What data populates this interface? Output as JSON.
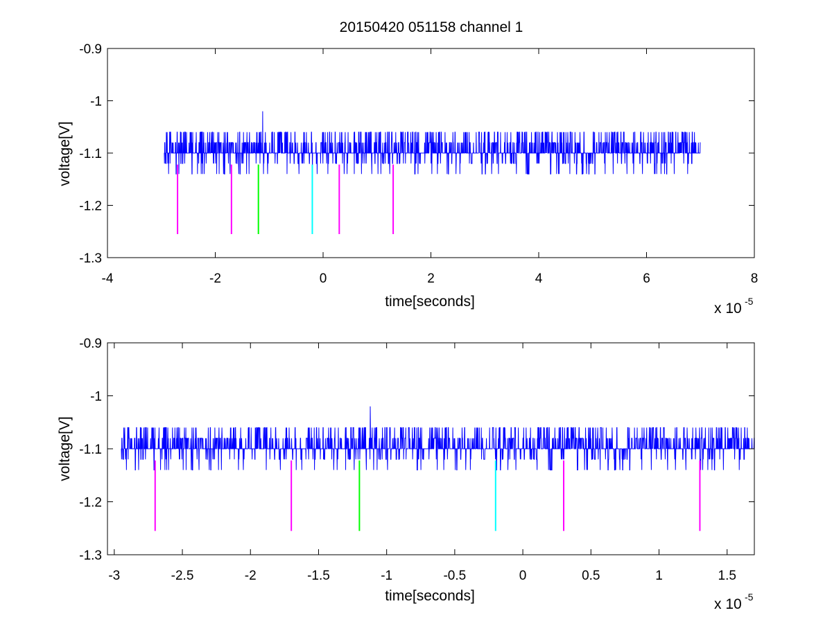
{
  "figure": {
    "title": "20150420 051158 channel 1"
  },
  "colors": {
    "signal": "#0000ff",
    "magenta": "#ff00ff",
    "green": "#00ff00",
    "cyan": "#00ffff",
    "axes": "#000000"
  },
  "chart_data": [
    {
      "type": "line",
      "title": "20150420 051158 channel 1",
      "xlabel": "time[seconds]",
      "ylabel": "voltage[V]",
      "x_multiplier_label": "x 10",
      "x_multiplier_exponent": "-5",
      "x_scale": 1e-05,
      "xlim": [
        -4e-05,
        8e-05
      ],
      "ylim": [
        -1.3,
        -0.9
      ],
      "x_tick_labels": [
        "-4",
        "-2",
        "0",
        "2",
        "4",
        "6",
        "8"
      ],
      "x_tick_values": [
        -4e-05,
        -2e-05,
        0,
        2e-05,
        4e-05,
        6e-05,
        8e-05
      ],
      "y_tick_labels": [
        "-1.3",
        "-1.2",
        "-1.1",
        "-1",
        "-0.9"
      ],
      "y_tick_values": [
        -1.3,
        -1.2,
        -1.1,
        -1.0,
        -0.9
      ],
      "grid": false,
      "series": [
        {
          "kind": "noisy-step-signal",
          "color": "#0000ff",
          "x_range": [
            -2.95e-05,
            7e-05
          ],
          "baseline": -1.1,
          "levels": [
            -1.14,
            -1.12,
            -1.1,
            -1.08,
            -1.06
          ],
          "spike": {
            "x": -1.12e-05,
            "y": -1.02
          }
        }
      ],
      "markers": [
        {
          "x": -2.7e-05,
          "y_range": [
            -1.255,
            -1.122
          ],
          "color": "#ff00ff"
        },
        {
          "x": -1.7e-05,
          "y_range": [
            -1.255,
            -1.122
          ],
          "color": "#ff00ff"
        },
        {
          "x": -1.2e-05,
          "y_range": [
            -1.255,
            -1.122
          ],
          "color": "#00ff00"
        },
        {
          "x": -2e-06,
          "y_range": [
            -1.255,
            -1.122
          ],
          "color": "#00ffff"
        },
        {
          "x": 3e-06,
          "y_range": [
            -1.255,
            -1.122
          ],
          "color": "#ff00ff"
        },
        {
          "x": 1.3e-05,
          "y_range": [
            -1.255,
            -1.122
          ],
          "color": "#ff00ff"
        }
      ]
    },
    {
      "type": "line",
      "xlabel": "time[seconds]",
      "ylabel": "voltage[V]",
      "x_multiplier_label": "x 10",
      "x_multiplier_exponent": "-5",
      "x_scale": 1e-05,
      "xlim": [
        -3.05e-05,
        1.7e-05
      ],
      "ylim": [
        -1.3,
        -0.9
      ],
      "x_tick_labels": [
        "-3",
        "-2.5",
        "-2",
        "-1.5",
        "-1",
        "-0.5",
        "0",
        "0.5",
        "1",
        "1.5"
      ],
      "x_tick_values": [
        -3e-05,
        -2.5e-05,
        -2e-05,
        -1.5e-05,
        -1e-05,
        -5e-06,
        0,
        5e-06,
        1e-05,
        1.5e-05
      ],
      "y_tick_labels": [
        "-1.3",
        "-1.2",
        "-1.1",
        "-1",
        "-0.9"
      ],
      "y_tick_values": [
        -1.3,
        -1.2,
        -1.1,
        -1.0,
        -0.9
      ],
      "grid": false,
      "series": [
        {
          "kind": "noisy-step-signal",
          "color": "#0000ff",
          "x_range": [
            -2.95e-05,
            1.7e-05
          ],
          "baseline": -1.1,
          "levels": [
            -1.14,
            -1.12,
            -1.1,
            -1.08,
            -1.06
          ],
          "spike": {
            "x": -1.12e-05,
            "y": -1.02
          }
        }
      ],
      "markers": [
        {
          "x": -2.7e-05,
          "y_range": [
            -1.255,
            -1.122
          ],
          "color": "#ff00ff"
        },
        {
          "x": -1.7e-05,
          "y_range": [
            -1.255,
            -1.122
          ],
          "color": "#ff00ff"
        },
        {
          "x": -1.2e-05,
          "y_range": [
            -1.255,
            -1.122
          ],
          "color": "#00ff00"
        },
        {
          "x": -2e-06,
          "y_range": [
            -1.255,
            -1.122
          ],
          "color": "#00ffff"
        },
        {
          "x": 3e-06,
          "y_range": [
            -1.255,
            -1.122
          ],
          "color": "#ff00ff"
        },
        {
          "x": 1.3e-05,
          "y_range": [
            -1.255,
            -1.122
          ],
          "color": "#ff00ff"
        }
      ]
    }
  ]
}
